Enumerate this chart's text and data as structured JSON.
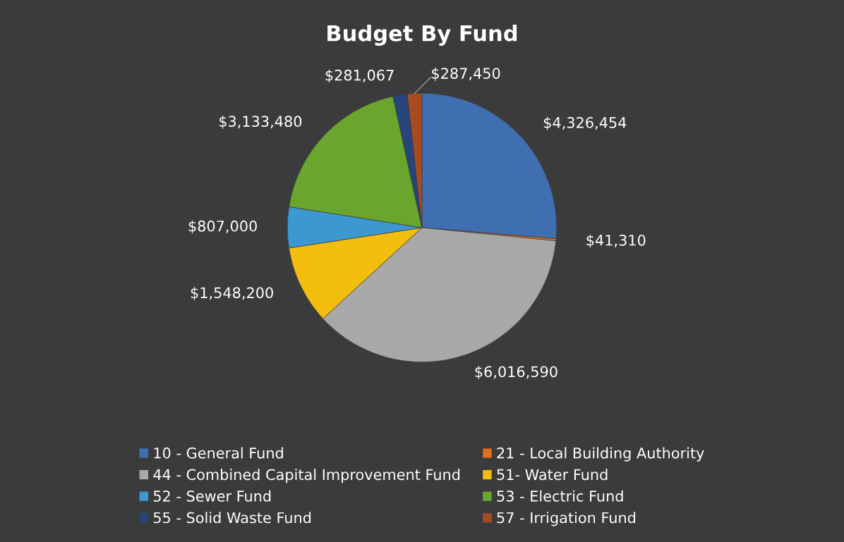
{
  "chart_data": {
    "type": "pie",
    "title": "Budget By Fund",
    "categories": [
      "10 - General Fund",
      "21 - Local Building Authority",
      "44 - Combined Capital Improvement Fund",
      "51- Water Fund",
      "52 - Sewer Fund",
      "53 - Electric Fund",
      "55 - Solid Waste Fund",
      "57 - Irrigation Fund"
    ],
    "values": [
      4326454,
      41310,
      6016590,
      1548200,
      807000,
      3133480,
      281067,
      287450
    ],
    "value_labels": [
      "$4,326,454",
      "$41,310",
      "$6,016,590",
      "$1,548,200",
      "$807,000",
      "$3,133,480",
      "$281,067",
      "$287,450"
    ],
    "colors": [
      "#3f6fb0",
      "#e0701e",
      "#a8a8a8",
      "#f2bd0c",
      "#3d98cf",
      "#6aa52e",
      "#27457a",
      "#a84a22"
    ],
    "legend": "bottom"
  }
}
